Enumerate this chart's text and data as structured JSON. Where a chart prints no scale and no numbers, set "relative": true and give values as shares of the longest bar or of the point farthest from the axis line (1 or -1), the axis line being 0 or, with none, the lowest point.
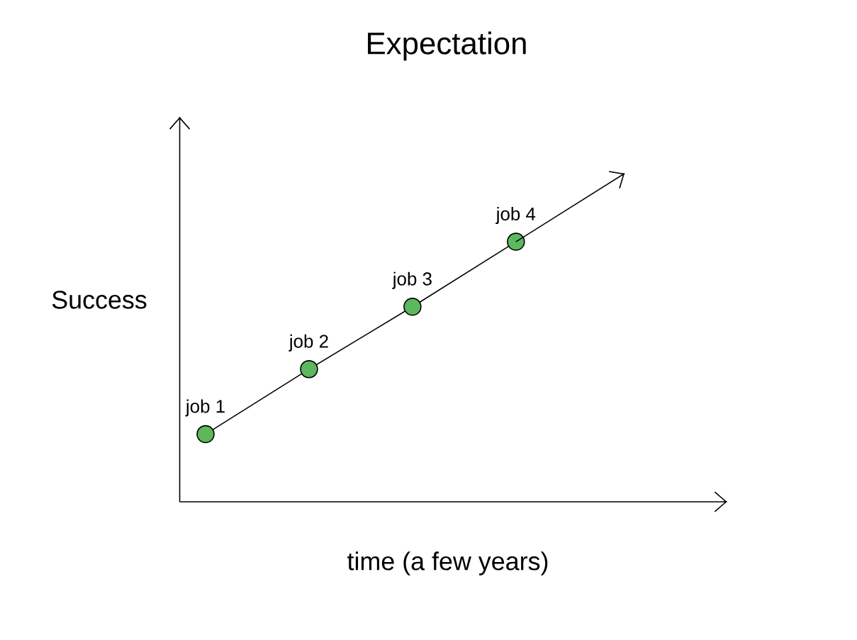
{
  "chart_data": {
    "type": "line",
    "title": "Expectation",
    "xlabel": "time (a few years)",
    "ylabel": "Success",
    "relative": true,
    "marker": "circle",
    "categories": [
      null,
      null,
      null,
      null
    ],
    "series": [
      {
        "color": "#000000",
        "colors": [
          "#5cb85c",
          "#5cb85c",
          "#5cb85c",
          "#5cb85c"
        ],
        "values": [
          0.26,
          0.51,
          0.75,
          1
        ]
      }
    ],
    "annotations": [
      {
        "text": "job 1",
        "y": 0.26
      },
      {
        "text": "job 2",
        "y": 0.51
      },
      {
        "text": "job 3",
        "y": 0.75
      },
      {
        "text": "job 4",
        "y": 1
      }
    ]
  }
}
